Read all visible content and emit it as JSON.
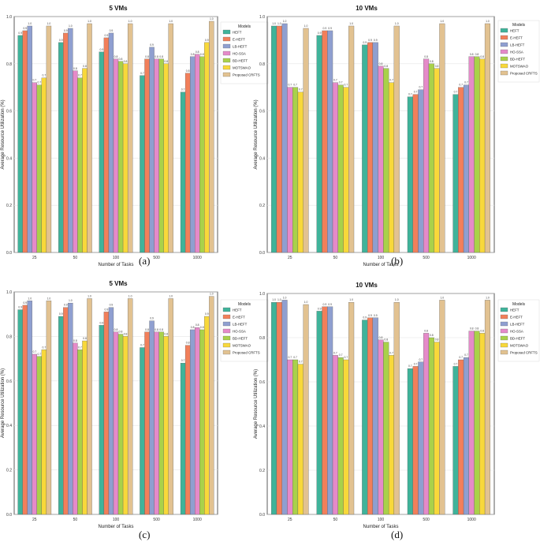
{
  "figure": {
    "panel_labels": [
      "(a)",
      "(b)",
      "(c)",
      "(d)"
    ]
  },
  "legend": {
    "title": "Models",
    "models": [
      "HEFT",
      "E-HEFT",
      "LB-HEFT",
      "HO-SSA",
      "BD-HEFT",
      "MOTSWAO",
      "Proposed CRFTS"
    ]
  },
  "colors": {
    "HEFT": "#3fb39a",
    "E-HEFT": "#f27f5a",
    "LB-HEFT": "#8f9fd0",
    "HO-SSA": "#e58ac9",
    "BD-HEFT": "#a9d14a",
    "MOTSWAO": "#f8d83a",
    "Proposed CRFTS": "#e2c291"
  },
  "chart_data": [
    {
      "type": "bar",
      "panel": "(a)",
      "title": "5 VMs",
      "xlabel": "Number of Tasks",
      "ylabel": "Average Resource Utilization (%)",
      "ylim": [
        0,
        1.0
      ],
      "yticks": [
        "0.0",
        "0.2",
        "0.4",
        "0.6",
        "0.8",
        "1.0"
      ],
      "categories": [
        "25",
        "50",
        "100",
        "500",
        "1000"
      ],
      "series": [
        {
          "name": "HEFT",
          "values": [
            0.92,
            0.89,
            0.85,
            0.75,
            0.68
          ],
          "labels": [
            "0.9",
            "0.9",
            "0.9",
            "0.7",
            "0.7"
          ]
        },
        {
          "name": "E-HEFT",
          "values": [
            0.94,
            0.93,
            0.91,
            0.82,
            0.76
          ],
          "labels": [
            "0.9",
            "0.9",
            "0.9",
            "0.8",
            "0.8"
          ]
        },
        {
          "name": "LB-HEFT",
          "values": [
            0.96,
            0.95,
            0.93,
            0.87,
            0.83
          ],
          "labels": [
            "1.0",
            "1.0",
            "0.9",
            "0.9",
            "0.8"
          ]
        },
        {
          "name": "HO-SSA",
          "values": [
            0.72,
            0.77,
            0.82,
            0.82,
            0.84
          ],
          "labels": [
            "0.7",
            "0.8",
            "0.8",
            "0.8",
            "0.8"
          ]
        },
        {
          "name": "BD-HEFT",
          "values": [
            0.71,
            0.74,
            0.81,
            0.82,
            0.83
          ],
          "labels": [
            "0.7",
            "0.7",
            "0.8",
            "0.8",
            "0.8"
          ]
        },
        {
          "name": "MOTSWAO",
          "values": [
            0.74,
            0.78,
            0.8,
            0.8,
            0.89
          ],
          "labels": [
            "0.7",
            "0.8",
            "0.8",
            "0.8",
            "0.9"
          ]
        },
        {
          "name": "Proposed CRFTS",
          "values": [
            0.96,
            0.97,
            0.97,
            0.97,
            0.98
          ],
          "labels": [
            "1.0",
            "1.0",
            "1.0",
            "1.0",
            "1.0"
          ]
        }
      ]
    },
    {
      "type": "bar",
      "panel": "(b)",
      "title": "10 VMs",
      "xlabel": "Number of Tasks",
      "ylabel": "Average Resource Utilization (%)",
      "ylim": [
        0,
        1.0
      ],
      "yticks": [
        "0.0",
        "0.2",
        "0.4",
        "0.6",
        "0.8",
        "1.0"
      ],
      "categories": [
        "25",
        "50",
        "100",
        "500",
        "1000"
      ],
      "series": [
        {
          "name": "HEFT",
          "values": [
            0.96,
            0.92,
            0.88,
            0.66,
            0.67
          ],
          "labels": [
            "1.0",
            "0.9",
            "0.9",
            "0.7",
            "0.7"
          ]
        },
        {
          "name": "E-HEFT",
          "values": [
            0.96,
            0.94,
            0.89,
            0.67,
            0.7
          ],
          "labels": [
            "1.0",
            "0.9",
            "0.9",
            "0.7",
            "0.7"
          ]
        },
        {
          "name": "LB-HEFT",
          "values": [
            0.97,
            0.94,
            0.89,
            0.69,
            0.71
          ],
          "labels": [
            "1.0",
            "0.9",
            "0.9",
            "0.7",
            "0.7"
          ]
        },
        {
          "name": "HO-SSA",
          "values": [
            0.7,
            0.72,
            0.79,
            0.82,
            0.83
          ],
          "labels": [
            "0.7",
            "0.7",
            "0.8",
            "0.8",
            "0.8"
          ]
        },
        {
          "name": "BD-HEFT",
          "values": [
            0.7,
            0.71,
            0.78,
            0.8,
            0.83
          ],
          "labels": [
            "0.7",
            "0.7",
            "0.8",
            "0.8",
            "0.8"
          ]
        },
        {
          "name": "MOTSWAO",
          "values": [
            0.68,
            0.7,
            0.72,
            0.78,
            0.82
          ],
          "labels": [
            "0.7",
            "0.7",
            "0.7",
            "0.8",
            "0.8"
          ]
        },
        {
          "name": "Proposed CRFTS",
          "values": [
            0.95,
            0.96,
            0.96,
            0.97,
            0.97
          ],
          "labels": [
            "1.0",
            "1.0",
            "1.0",
            "1.0",
            "1.0"
          ]
        }
      ]
    },
    {
      "type": "bar",
      "panel": "(c)",
      "title": "5 VMs",
      "xlabel": "Number of Tasks",
      "ylabel": "Average Resource Utilization (%)",
      "ylim": [
        0,
        1.0
      ],
      "yticks": [
        "0.0",
        "0.2",
        "0.4",
        "0.6",
        "0.8",
        "1.0"
      ],
      "categories": [
        "25",
        "50",
        "100",
        "500",
        "1000"
      ],
      "series": [
        {
          "name": "HEFT",
          "values": [
            0.92,
            0.89,
            0.85,
            0.75,
            0.68
          ],
          "labels": [
            "0.9",
            "0.9",
            "0.9",
            "0.7",
            "0.7"
          ]
        },
        {
          "name": "E-HEFT",
          "values": [
            0.94,
            0.93,
            0.91,
            0.82,
            0.76
          ],
          "labels": [
            "0.9",
            "0.9",
            "0.9",
            "0.8",
            "0.8"
          ]
        },
        {
          "name": "LB-HEFT",
          "values": [
            0.96,
            0.95,
            0.93,
            0.87,
            0.83
          ],
          "labels": [
            "1.0",
            "1.0",
            "0.9",
            "0.9",
            "0.8"
          ]
        },
        {
          "name": "HO-SSA",
          "values": [
            0.72,
            0.77,
            0.82,
            0.82,
            0.84
          ],
          "labels": [
            "0.7",
            "0.8",
            "0.8",
            "0.8",
            "0.8"
          ]
        },
        {
          "name": "BD-HEFT",
          "values": [
            0.71,
            0.74,
            0.81,
            0.82,
            0.83
          ],
          "labels": [
            "0.7",
            "0.7",
            "0.8",
            "0.8",
            "0.8"
          ]
        },
        {
          "name": "MOTSWAO",
          "values": [
            0.74,
            0.78,
            0.8,
            0.8,
            0.89
          ],
          "labels": [
            "0.7",
            "0.8",
            "0.8",
            "0.8",
            "0.9"
          ]
        },
        {
          "name": "Proposed CRFTS",
          "values": [
            0.96,
            0.97,
            0.97,
            0.97,
            0.98
          ],
          "labels": [
            "1.0",
            "1.0",
            "1.0",
            "1.0",
            "1.0"
          ]
        }
      ]
    },
    {
      "type": "bar",
      "panel": "(d)",
      "title": "10 VMs",
      "xlabel": "Number of Tasks",
      "ylabel": "Average Resource Utilization (%)",
      "ylim": [
        0,
        1.0
      ],
      "yticks": [
        "0.0",
        "0.2",
        "0.4",
        "0.6",
        "0.8",
        "1.0"
      ],
      "categories": [
        "25",
        "50",
        "100",
        "500",
        "1000"
      ],
      "series": [
        {
          "name": "HEFT",
          "values": [
            0.96,
            0.92,
            0.88,
            0.66,
            0.67
          ],
          "labels": [
            "1.0",
            "0.9",
            "0.9",
            "0.7",
            "0.7"
          ]
        },
        {
          "name": "E-HEFT",
          "values": [
            0.96,
            0.94,
            0.89,
            0.67,
            0.7
          ],
          "labels": [
            "1.0",
            "0.9",
            "0.9",
            "0.7",
            "0.7"
          ]
        },
        {
          "name": "LB-HEFT",
          "values": [
            0.97,
            0.94,
            0.89,
            0.69,
            0.71
          ],
          "labels": [
            "1.0",
            "0.9",
            "0.9",
            "0.7",
            "0.7"
          ]
        },
        {
          "name": "HO-SSA",
          "values": [
            0.7,
            0.72,
            0.79,
            0.82,
            0.83
          ],
          "labels": [
            "0.7",
            "0.7",
            "0.8",
            "0.8",
            "0.8"
          ]
        },
        {
          "name": "BD-HEFT",
          "values": [
            0.7,
            0.71,
            0.78,
            0.8,
            0.83
          ],
          "labels": [
            "0.7",
            "0.7",
            "0.8",
            "0.8",
            "0.8"
          ]
        },
        {
          "name": "MOTSWAO",
          "values": [
            0.68,
            0.7,
            0.72,
            0.78,
            0.82
          ],
          "labels": [
            "0.7",
            "0.7",
            "0.7",
            "0.8",
            "0.8"
          ]
        },
        {
          "name": "Proposed CRFTS",
          "values": [
            0.95,
            0.96,
            0.96,
            0.97,
            0.97
          ],
          "labels": [
            "1.0",
            "1.0",
            "1.0",
            "1.0",
            "1.0"
          ]
        }
      ]
    }
  ]
}
